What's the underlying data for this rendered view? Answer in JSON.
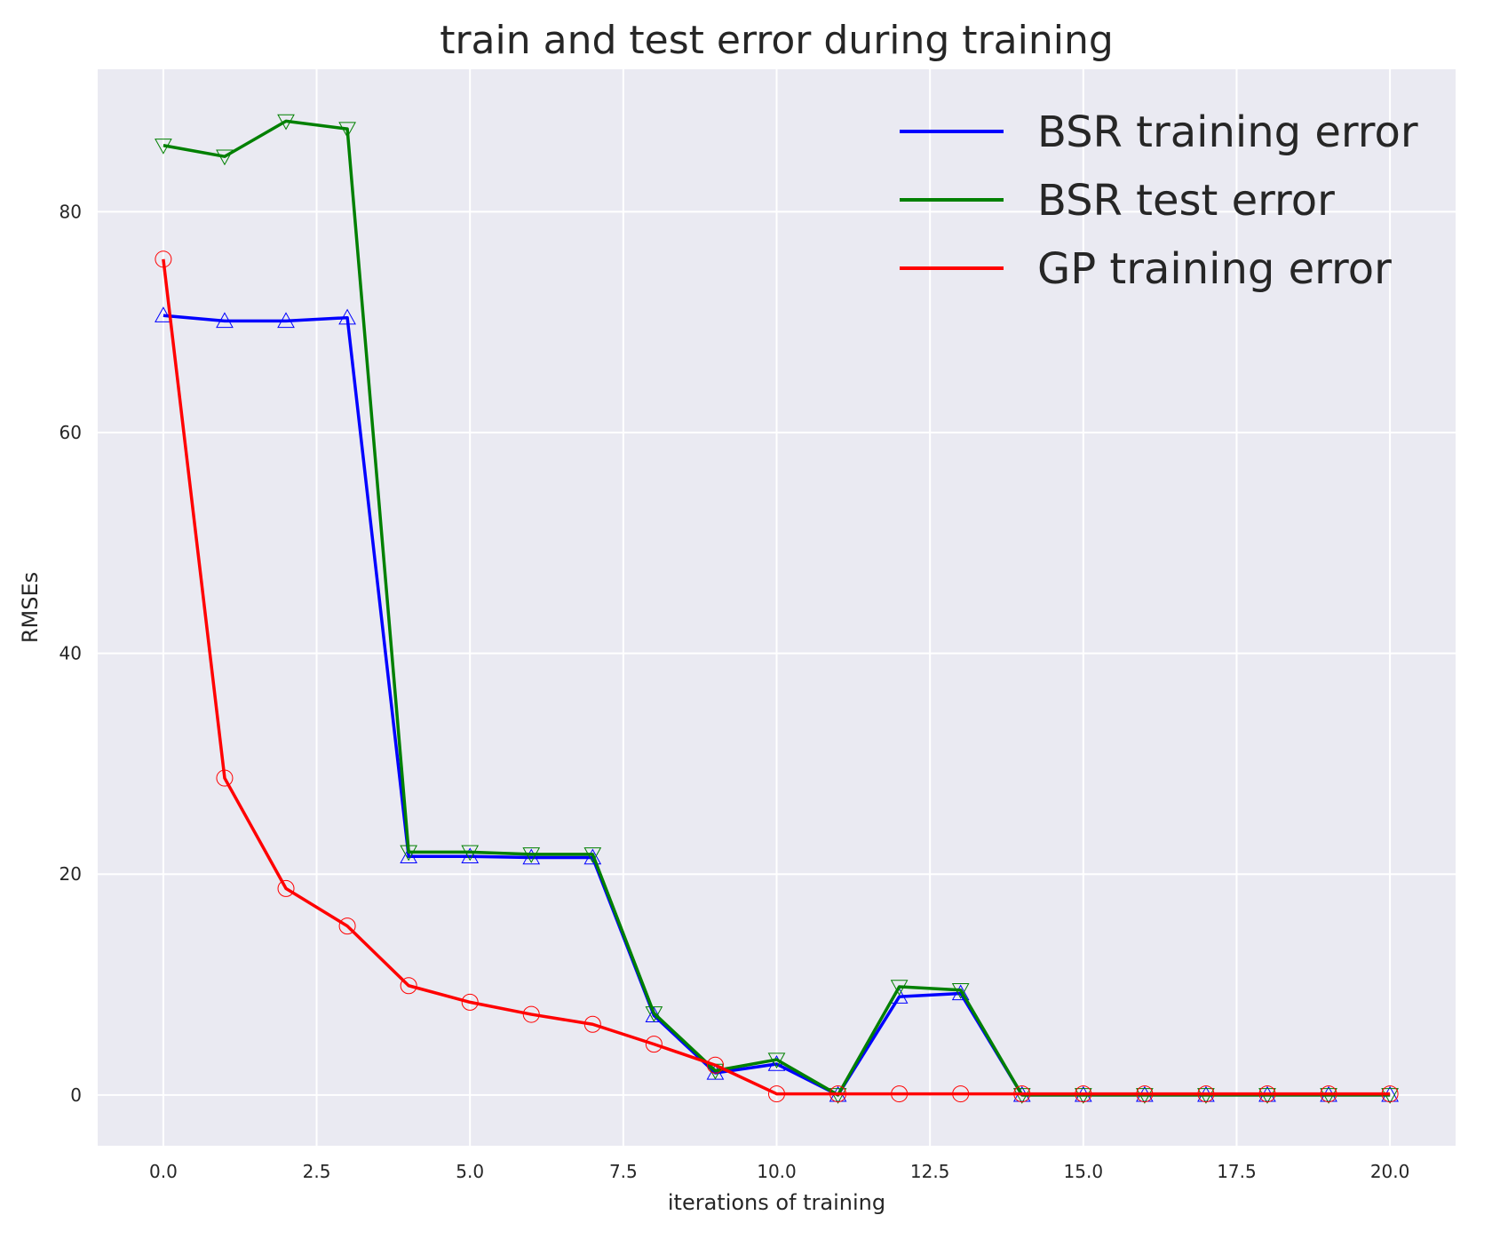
{
  "colors": {
    "background": "#ffffff",
    "plot_area": "#eaeaf2",
    "grid": "#ffffff",
    "text": "#262626",
    "series_bsr_train": "#0000ff",
    "series_bsr_test": "#008000",
    "series_gp_train": "#ff0000"
  },
  "chart_data": {
    "type": "line",
    "title": "train and test error during training",
    "xlabel": "iterations of training",
    "ylabel": "RMSEs",
    "xlim": [
      -1.07,
      21.07
    ],
    "ylim": [
      -4.6,
      92.9
    ],
    "xticks": [
      0.0,
      2.5,
      5.0,
      7.5,
      10.0,
      12.5,
      15.0,
      17.5,
      20.0
    ],
    "xtick_labels": [
      "0.0",
      "2.5",
      "5.0",
      "7.5",
      "10.0",
      "12.5",
      "15.0",
      "17.5",
      "20.0"
    ],
    "yticks": [
      0,
      20,
      40,
      60,
      80
    ],
    "ytick_labels": [
      "0",
      "20",
      "40",
      "60",
      "80"
    ],
    "grid": true,
    "legend_position": "top-right",
    "x": [
      0,
      1,
      2,
      3,
      4,
      5,
      6,
      7,
      8,
      9,
      10,
      11,
      12,
      13,
      14,
      15,
      16,
      17,
      18,
      19,
      20
    ],
    "series": [
      {
        "name": "BSR training error",
        "color": "#0000ff",
        "marker": "triangle-up",
        "values": [
          70.6,
          70.1,
          70.1,
          70.4,
          21.6,
          21.6,
          21.5,
          21.5,
          7.2,
          2.0,
          2.8,
          0.0,
          8.9,
          9.2,
          0.0,
          0.0,
          0.0,
          0.0,
          0.0,
          0.0,
          0.0
        ]
      },
      {
        "name": "BSR test error",
        "color": "#008000",
        "marker": "triangle-down",
        "values": [
          86.0,
          85.0,
          88.2,
          87.5,
          22.0,
          22.0,
          21.8,
          21.8,
          7.4,
          2.2,
          3.2,
          0.0,
          9.8,
          9.5,
          0.0,
          0.0,
          0.0,
          0.0,
          0.0,
          0.0,
          0.0
        ]
      },
      {
        "name": "GP training error",
        "color": "#ff0000",
        "marker": "circle",
        "values": [
          75.7,
          28.7,
          18.7,
          15.3,
          9.9,
          8.4,
          7.3,
          6.4,
          4.6,
          2.7,
          0.1,
          0.1,
          0.1,
          0.1,
          0.1,
          0.1,
          0.1,
          0.1,
          0.1,
          0.1,
          0.1
        ]
      }
    ]
  }
}
